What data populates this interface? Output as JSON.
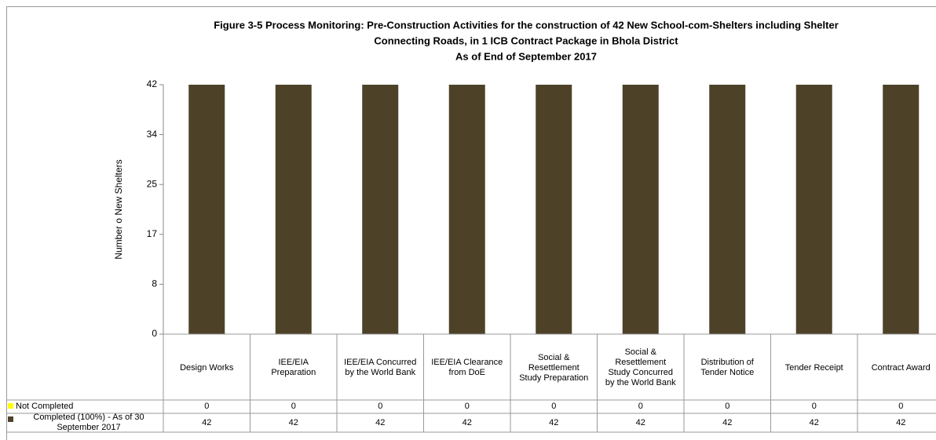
{
  "chart_data": {
    "type": "bar",
    "stacked": true,
    "title": [
      "Figure 3-5  Process Monitoring: Pre-Construction Activities for the construction of 42 New School-com-Shelters including Shelter",
      "Connecting Roads, in 1 ICB Contract Package in Bhola District",
      "As of End of September 2017"
    ],
    "y_label": "Number o New Shelters",
    "categories": [
      "Design Works",
      "IEE/EIA Preparation",
      "IEE/EIA Concurred by the World Bank",
      "IEE/EIA Clearance from DoE",
      "Social & Resettlement Study Preparation",
      "Social & Resettlement Study Concurred by the World Bank",
      "Distribution of Tender Notice",
      "Tender Receipt",
      "Contract Award"
    ],
    "series": [
      {
        "name": "Not Completed",
        "color": "#ffff00",
        "values": [
          0,
          0,
          0,
          0,
          0,
          0,
          0,
          0,
          0
        ]
      },
      {
        "name": "Completed (100%) - As of 30 September 2017",
        "color": "#4d4228",
        "values": [
          42,
          42,
          42,
          42,
          42,
          42,
          42,
          42,
          42
        ]
      }
    ],
    "ylim": [
      0,
      42
    ],
    "yticks": [
      0,
      {
        "value": 8.4,
        "label": "8"
      },
      {
        "value": 16.8,
        "label": "17"
      },
      {
        "value": 25.2,
        "label": "25"
      },
      {
        "value": 33.6,
        "label": "34"
      },
      42
    ],
    "grid": false,
    "data_table": true
  }
}
